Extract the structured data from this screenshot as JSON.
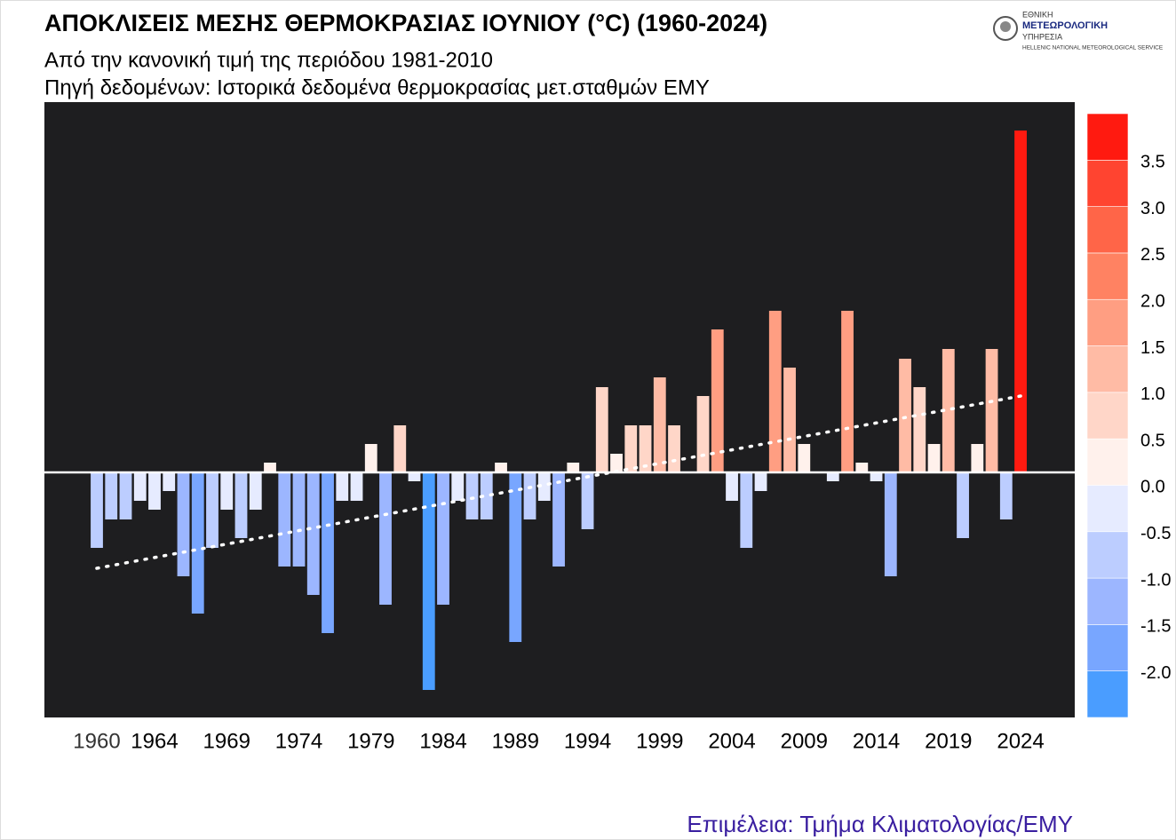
{
  "chart_data": {
    "type": "bar",
    "title": "ΑΠΟΚΛΙΣΕΙΣ ΜΕΣΗΣ ΘΕΡΜΟΚΡΑΣΙΑΣ  ΙΟΥΝΙΟΥ (°C) (1960-2024)",
    "subtitle": [
      "Από την κανονική τιμή της περιόδου 1981-2010",
      "Πηγή δεδομένων: Ιστορικά δεδομένα θερμοκρασίας μετ.σταθμών ΕΜΥ"
    ],
    "credit": "Επιμέλεια: Τμήμα Κλιματολογίας/ΕΜΥ",
    "logo": [
      "ΕΘΝΙΚΗ",
      "ΜΕΤΕΩΡΟΛΟΓΙΚΗ",
      "ΥΠΗΡΕΣΙΑ",
      "HELLENIC NATIONAL METEOROLOGICAL SERVICE"
    ],
    "x": [
      1960,
      1961,
      1962,
      1963,
      1964,
      1965,
      1966,
      1967,
      1968,
      1969,
      1970,
      1971,
      1972,
      1973,
      1974,
      1975,
      1976,
      1977,
      1978,
      1979,
      1980,
      1981,
      1982,
      1983,
      1984,
      1985,
      1986,
      1987,
      1988,
      1989,
      1990,
      1991,
      1992,
      1993,
      1994,
      1995,
      1996,
      1997,
      1998,
      1999,
      2000,
      2001,
      2002,
      2003,
      2004,
      2005,
      2006,
      2007,
      2008,
      2009,
      2010,
      2011,
      2012,
      2013,
      2014,
      2015,
      2016,
      2017,
      2018,
      2019,
      2020,
      2021,
      2022,
      2023,
      2024
    ],
    "values": [
      -0.85,
      -0.53,
      -0.53,
      -0.32,
      -0.42,
      -0.21,
      -1.17,
      -1.59,
      -0.85,
      -0.42,
      -0.74,
      -0.42,
      0.11,
      -1.06,
      -1.06,
      -1.38,
      -1.81,
      -0.32,
      -0.32,
      0.32,
      -1.49,
      0.53,
      -0.1,
      -2.45,
      -1.49,
      -0.32,
      -0.53,
      -0.53,
      0.11,
      -1.91,
      -0.53,
      -0.32,
      -1.06,
      0.11,
      -0.64,
      0.96,
      0.21,
      0.53,
      0.53,
      1.07,
      0.53,
      0,
      0.86,
      1.61,
      -0.32,
      -0.85,
      -0.21,
      1.82,
      1.18,
      0.32,
      0,
      -0.1,
      1.82,
      0.11,
      -0.1,
      -1.17,
      1.28,
      0.96,
      0.32,
      1.39,
      -0.74,
      0.32,
      1.39,
      -0.53,
      3.85
    ],
    "trend_values": [
      -1.08,
      0.86
    ],
    "xlim": [
      1956.37,
      2027.75
    ],
    "xticks": [
      1960,
      1964,
      1969,
      1974,
      1979,
      1984,
      1989,
      1994,
      1999,
      2004,
      2009,
      2014,
      2019,
      2024
    ],
    "ylim": [
      -2.76,
      4.17
    ],
    "clim": [
      -2.5,
      4.0
    ],
    "cticks": [
      3.5,
      {
        "value": 3,
        "label": "3.0"
      },
      2.5,
      {
        "value": 2,
        "label": "2.0"
      },
      1.5,
      {
        "value": 1,
        "label": "1.0"
      },
      0.5,
      {
        "value": 0,
        "label": "0.0"
      },
      -0.5,
      {
        "value": -1,
        "label": "-1.0"
      },
      -1.5,
      {
        "value": -2,
        "label": "-2.0"
      }
    ],
    "colors": [
      "#4a9dff",
      "#78a6ff",
      "#9cb6ff",
      "#bccdff",
      "#e6ebff",
      "#fff1ec",
      "#ffd6c8",
      "#ffbba5",
      "#ff9e82",
      "#ff8262",
      "#ff6548",
      "#ff4430",
      "#ff1a10"
    ],
    "background": "#1e1e20"
  }
}
